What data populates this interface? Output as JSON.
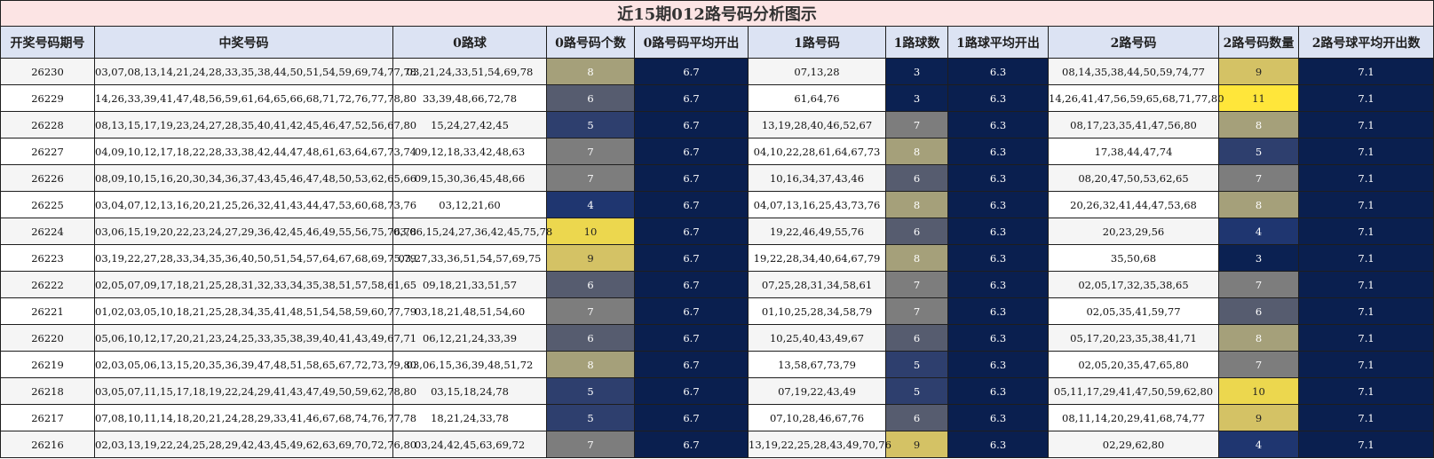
{
  "title": "近15期012路号码分析图示",
  "headers": [
    "开奖号码期号",
    "中奖号码",
    "0路球",
    "0路号码个数",
    "0路号码平均开出",
    "1路号码",
    "1路球数",
    "1路球平均开出",
    "2路号码",
    "2路号码数量",
    "2路号球平均开出数"
  ],
  "colors": {
    "avg_bg": "#0a1f4f",
    "header_bg": "#dce3f3",
    "title_bg": "#fce4e4",
    "heat_scale": {
      "3": "#0b2152",
      "4": "#1f3670",
      "5": "#2e3f6e",
      "6": "#565c6f",
      "7": "#7d7d7d",
      "8": "#a5a07a",
      "9": "#d4c265",
      "10": "#ecd74e",
      "11": "#ffe63a"
    }
  },
  "chart_data": {
    "type": "table",
    "columns": [
      "开奖号码期号",
      "中奖号码",
      "0路球",
      "0路号码个数",
      "0路号码平均开出",
      "1路号码",
      "1路球数",
      "1路球平均开出",
      "2路号码",
      "2路号码数量",
      "2路号球平均开出数"
    ],
    "rows": [
      [
        "26230",
        "03,07,08,13,14,21,24,28,33,35,38,44,50,51,54,59,69,74,77,78",
        "03,21,24,33,51,54,69,78",
        8,
        "6.7",
        "07,13,28",
        3,
        "6.3",
        "08,14,35,38,44,50,59,74,77",
        9,
        "7.1"
      ],
      [
        "26229",
        "14,26,33,39,41,47,48,56,59,61,64,65,66,68,71,72,76,77,78,80",
        "33,39,48,66,72,78",
        6,
        "6.7",
        "61,64,76",
        3,
        "6.3",
        "14,26,41,47,56,59,65,68,71,77,80",
        11,
        "7.1"
      ],
      [
        "26228",
        "08,13,15,17,19,23,24,27,28,35,40,41,42,45,46,47,52,56,67,80",
        "15,24,27,42,45",
        5,
        "6.7",
        "13,19,28,40,46,52,67",
        7,
        "6.3",
        "08,17,23,35,41,47,56,80",
        8,
        "7.1"
      ],
      [
        "26227",
        "04,09,10,12,17,18,22,28,33,38,42,44,47,48,61,63,64,67,73,74",
        "09,12,18,33,42,48,63",
        7,
        "6.7",
        "04,10,22,28,61,64,67,73",
        8,
        "6.3",
        "17,38,44,47,74",
        5,
        "7.1"
      ],
      [
        "26226",
        "08,09,10,15,16,20,30,34,36,37,43,45,46,47,48,50,53,62,65,66",
        "09,15,30,36,45,48,66",
        7,
        "6.7",
        "10,16,34,37,43,46",
        6,
        "6.3",
        "08,20,47,50,53,62,65",
        7,
        "7.1"
      ],
      [
        "26225",
        "03,04,07,12,13,16,20,21,25,26,32,41,43,44,47,53,60,68,73,76",
        "03,12,21,60",
        4,
        "6.7",
        "04,07,13,16,25,43,73,76",
        8,
        "6.3",
        "20,26,32,41,44,47,53,68",
        8,
        "7.1"
      ],
      [
        "26224",
        "03,06,15,19,20,22,23,24,27,29,36,42,45,46,49,55,56,75,76,78",
        "03,06,15,24,27,36,42,45,75,78",
        10,
        "6.7",
        "19,22,46,49,55,76",
        6,
        "6.3",
        "20,23,29,56",
        4,
        "7.1"
      ],
      [
        "26223",
        "03,19,22,27,28,33,34,35,36,40,50,51,54,57,64,67,68,69,75,79",
        "03,27,33,36,51,54,57,69,75",
        9,
        "6.7",
        "19,22,28,34,40,64,67,79",
        8,
        "6.3",
        "35,50,68",
        3,
        "7.1"
      ],
      [
        "26222",
        "02,05,07,09,17,18,21,25,28,31,32,33,34,35,38,51,57,58,61,65",
        "09,18,21,33,51,57",
        6,
        "6.7",
        "07,25,28,31,34,58,61",
        7,
        "6.3",
        "02,05,17,32,35,38,65",
        7,
        "7.1"
      ],
      [
        "26221",
        "01,02,03,05,10,18,21,25,28,34,35,41,48,51,54,58,59,60,77,79",
        "03,18,21,48,51,54,60",
        7,
        "6.7",
        "01,10,25,28,34,58,79",
        7,
        "6.3",
        "02,05,35,41,59,77",
        6,
        "7.1"
      ],
      [
        "26220",
        "05,06,10,12,17,20,21,23,24,25,33,35,38,39,40,41,43,49,67,71",
        "06,12,21,24,33,39",
        6,
        "6.7",
        "10,25,40,43,49,67",
        6,
        "6.3",
        "05,17,20,23,35,38,41,71",
        8,
        "7.1"
      ],
      [
        "26219",
        "02,03,05,06,13,15,20,35,36,39,47,48,51,58,65,67,72,73,79,80",
        "03,06,15,36,39,48,51,72",
        8,
        "6.7",
        "13,58,67,73,79",
        5,
        "6.3",
        "02,05,20,35,47,65,80",
        7,
        "7.1"
      ],
      [
        "26218",
        "03,05,07,11,15,17,18,19,22,24,29,41,43,47,49,50,59,62,78,80",
        "03,15,18,24,78",
        5,
        "6.7",
        "07,19,22,43,49",
        5,
        "6.3",
        "05,11,17,29,41,47,50,59,62,80",
        10,
        "7.1"
      ],
      [
        "26217",
        "07,08,10,11,14,18,20,21,24,28,29,33,41,46,67,68,74,76,77,78",
        "18,21,24,33,78",
        5,
        "6.7",
        "07,10,28,46,67,76",
        6,
        "6.3",
        "08,11,14,20,29,41,68,74,77",
        9,
        "7.1"
      ],
      [
        "26216",
        "02,03,13,19,22,24,25,28,29,42,43,45,49,62,63,69,70,72,76,80",
        "03,24,42,45,63,69,72",
        7,
        "6.7",
        "13,19,22,25,28,43,49,70,76",
        9,
        "6.3",
        "02,29,62,80",
        4,
        "7.1"
      ]
    ]
  }
}
